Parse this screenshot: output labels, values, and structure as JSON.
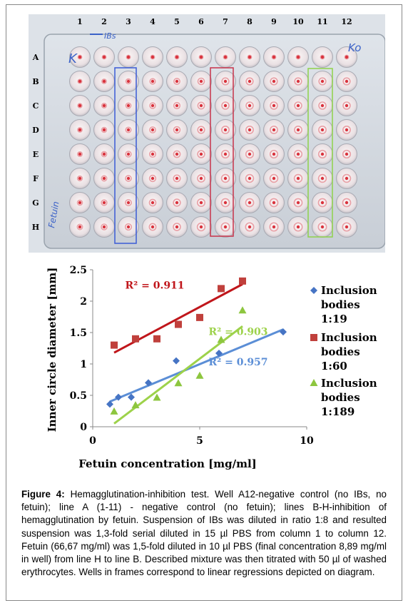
{
  "plate": {
    "column_labels": [
      "1",
      "2",
      "3",
      "4",
      "5",
      "6",
      "7",
      "8",
      "9",
      "10",
      "11",
      "12"
    ],
    "row_labels": [
      "A",
      "B",
      "C",
      "D",
      "E",
      "F",
      "G",
      "H"
    ],
    "handwritten": {
      "ibs": "IBs",
      "k": "K",
      "ko": "Ko",
      "fetuin": "Fetuin"
    },
    "frame_colors": {
      "col3": "#3b5bd6",
      "col7": "#c8334a",
      "col11": "#8fd24a"
    }
  },
  "chart_data": {
    "type": "scatter",
    "xlabel": "Fetuin concentration [mg/ml]",
    "ylabel": "Inner circle diameter [mm]",
    "xlim": [
      0,
      10
    ],
    "ylim": [
      0,
      2.5
    ],
    "x_ticks": [
      "0",
      "5",
      "10"
    ],
    "y_ticks": [
      "0",
      "0.5",
      "1",
      "1.5",
      "2",
      "2.5"
    ],
    "series": [
      {
        "name_lines": [
          "Inclusion",
          "bodies",
          "1:19"
        ],
        "marker": "diamond",
        "color": "#4674c4",
        "trend_color": "#5b8ed6",
        "x": [
          0.8,
          1.2,
          1.8,
          2.6,
          3.9,
          5.9,
          8.9
        ],
        "y": [
          0.36,
          0.47,
          0.47,
          0.7,
          1.05,
          1.17,
          1.51
        ],
        "r2": "R² = 0.957",
        "trend": [
          [
            0.8,
            0.4
          ],
          [
            8.9,
            1.55
          ]
        ]
      },
      {
        "name_lines": [
          "Inclusion",
          "bodies",
          "1:60"
        ],
        "marker": "square",
        "color": "#c0403c",
        "trend_color": "#c0161b",
        "x": [
          1.0,
          2.0,
          3.0,
          4.0,
          5.0,
          6.0,
          7.0
        ],
        "y": [
          1.3,
          1.4,
          1.4,
          1.63,
          1.74,
          2.2,
          2.32
        ],
        "r2": "R² = 0.911",
        "trend": [
          [
            1.0,
            1.18
          ],
          [
            7.0,
            2.27
          ]
        ]
      },
      {
        "name_lines": [
          "Inclusion",
          "bodies",
          "1:189"
        ],
        "marker": "triangle",
        "color": "#8dc63f",
        "trend_color": "#9dd24a",
        "x": [
          1.0,
          2.0,
          3.0,
          4.0,
          5.0,
          6.0,
          7.0
        ],
        "y": [
          0.24,
          0.34,
          0.46,
          0.69,
          0.81,
          1.38,
          1.85
        ],
        "r2": "R² = 0.903",
        "trend": [
          [
            1.0,
            0.05
          ],
          [
            7.0,
            1.6
          ]
        ]
      }
    ],
    "legend": "right"
  },
  "caption": {
    "label": "Figure 4:",
    "text": " Hemagglutination-inhibition test. Well A12-negative control (no IBs, no fetuin); line A (1-11) - negative control (no fetuin); lines B-H-inhibition of hemagglutination by fetuin. Suspension of IBs was diluted in ratio 1:8 and resulted suspension was 1,3-fold serial diluted in 15 µl PBS from column 1 to column 12. Fetuin (66,67 mg/ml) was 1,5-fold diluted in 10 µl PBS (final concentration 8,89 mg/ml in well) from line H to line B. Described mixture was then titrated with 50 µl of washed erythrocytes. Wells in frames correspond to linear regressions depicted on diagram."
  }
}
